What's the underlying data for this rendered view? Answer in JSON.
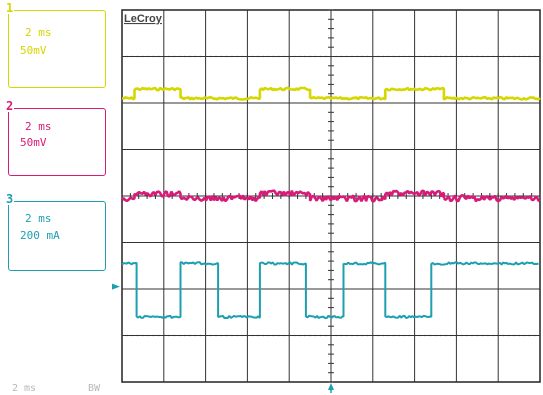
{
  "brand": "LeCroy",
  "channels": [
    {
      "number": "1",
      "timebase": "2 ms",
      "scale": "50mV",
      "color": "#d6d600"
    },
    {
      "number": "2",
      "timebase": "2 ms",
      "scale": "50mV",
      "color": "#d81b78"
    },
    {
      "number": "3",
      "timebase": "2 ms",
      "scale": "200 mA",
      "color": "#1e9fb0"
    }
  ],
  "footer": {
    "timebase": "2 ms",
    "mode": "BW"
  },
  "chart_data": {
    "type": "line",
    "title": "",
    "xlabel": "",
    "ylabel": "",
    "grid": true,
    "x_divisions": 10,
    "y_divisions": 8,
    "x_unit": "div",
    "y_unit": "div",
    "xlim": [
      0,
      10
    ],
    "ylim": [
      -4,
      4
    ],
    "series": [
      {
        "channel": "1",
        "color": "#d6d600",
        "x": [
          0,
          0.3,
          0.3,
          1.4,
          1.4,
          3.3,
          3.3,
          4.5,
          4.5,
          6.3,
          6.3,
          7.7,
          7.7,
          10
        ],
        "y": [
          2.1,
          2.1,
          2.3,
          2.3,
          2.1,
          2.1,
          2.3,
          2.3,
          2.1,
          2.1,
          2.3,
          2.3,
          2.1,
          2.1
        ]
      },
      {
        "channel": "2",
        "color": "#d81b78",
        "x": [
          0,
          0.3,
          0.3,
          1.4,
          1.4,
          3.3,
          3.3,
          4.5,
          4.5,
          6.3,
          6.3,
          7.7,
          7.7,
          10
        ],
        "y": [
          -0.05,
          -0.05,
          0.05,
          0.05,
          -0.05,
          -0.05,
          0.05,
          0.05,
          -0.05,
          -0.05,
          0.05,
          0.05,
          -0.05,
          -0.05
        ]
      },
      {
        "channel": "3",
        "color": "#1e9fb0",
        "x": [
          0,
          0.35,
          0.35,
          1.4,
          1.4,
          2.3,
          2.3,
          3.3,
          3.3,
          4.4,
          4.4,
          5.3,
          5.3,
          6.3,
          6.3,
          7.4,
          7.4,
          10
        ],
        "y": [
          -1.45,
          -1.45,
          -2.6,
          -2.6,
          -1.45,
          -1.45,
          -2.6,
          -2.6,
          -1.45,
          -1.45,
          -2.6,
          -2.6,
          -1.45,
          -1.45,
          -2.6,
          -2.6,
          -1.45,
          -1.45
        ]
      }
    ]
  }
}
